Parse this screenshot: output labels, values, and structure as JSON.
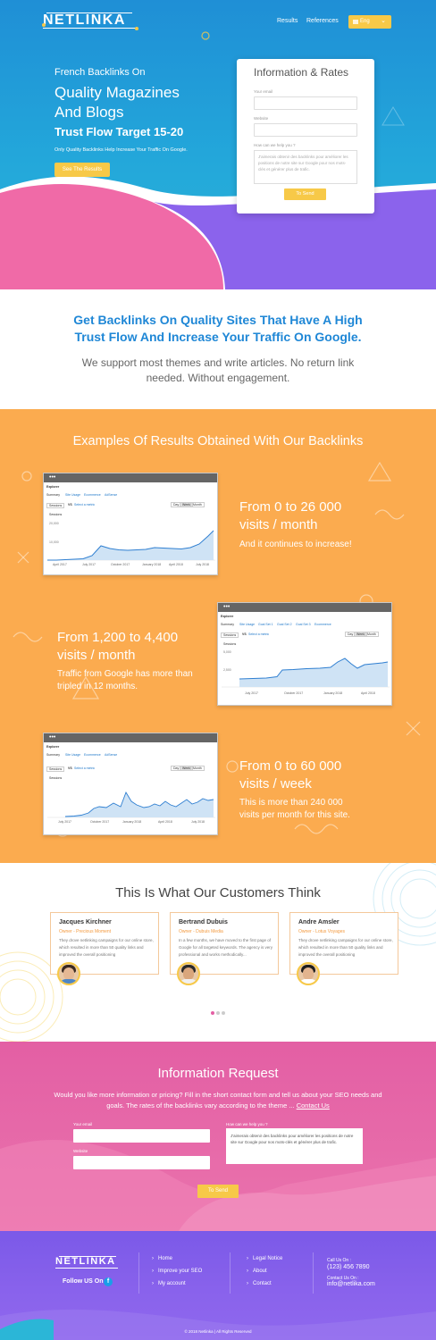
{
  "header": {
    "logo": "NETLINKA",
    "nav": [
      "Results",
      "References"
    ],
    "lang": "Eng"
  },
  "hero": {
    "small": "French Backlinks On",
    "big1": "Quality Magazines",
    "big2": "And Blogs",
    "trust": "Trust Flow Target 15-20",
    "sub": "Only Quality Backlinks Help Increase Your Traffic On Google.",
    "cta": "See The Results"
  },
  "rates_form": {
    "title": "Information & Rates",
    "email_label": "Your email",
    "website_label": "Website",
    "help_label": "How can we help you ?",
    "help_text": "J'aimerais obtenir des backlinks pour améliorer les positions de notre site sur Google pour nos mots-clés et générer plus de trafic.",
    "send": "To Send"
  },
  "intro": {
    "headline1": "Get Backlinks On Quality Sites That Have A High",
    "headline2": "Trust Flow And Increase Your Traffic On Google.",
    "sub1": "We support most themes and write articles. No return link",
    "sub2": "needed. Without engagement."
  },
  "results": {
    "title": "Examples Of Results Obtained With Our Backlinks",
    "items": [
      {
        "head1": "From 0 to 26 000",
        "head2": "visits / month",
        "sub1": "And it continues to increase!",
        "sub2": "",
        "tabs": [
          "Summary",
          "Site Usage",
          "Ecommerce",
          "AdSense"
        ],
        "xlabels": [
          "April 2017",
          "July 2017",
          "October 2017",
          "January 2018",
          "April 2018",
          "July 2018"
        ],
        "ylabels": [
          "20,000",
          "10,000"
        ]
      },
      {
        "head1": "From 1,200 to 4,400",
        "head2": "visits / month",
        "sub1": "Traffic from Google has more than",
        "sub2": "tripled in 12 months.",
        "tabs": [
          "Summary",
          "Site Usage",
          "Goal Set 1",
          "Goal Set 2",
          "Goal Set 3",
          "Ecommerce"
        ],
        "xlabels": [
          "July 2017",
          "October 2017",
          "January 2018",
          "April 2018"
        ],
        "ylabels": [
          "5,000",
          "2,500"
        ]
      },
      {
        "head1": "From 0 to 60 000",
        "head2": "visits / week",
        "sub1": "This is more than 240 000",
        "sub2": "visits per month for this site.",
        "tabs": [
          "Summary",
          "Site Usage",
          "Ecommerce",
          "AdSense"
        ],
        "xlabels": [
          "July 2017",
          "October 2017",
          "January 2018",
          "April 2018",
          "July 2018"
        ],
        "ylabels": []
      }
    ],
    "explorer": "Explorer",
    "sessions": "Sessions",
    "vs": "VS",
    "select_metric": "Select a metric",
    "day": "Day",
    "week": "Week",
    "month": "Month"
  },
  "testimonials": {
    "title": "This Is What Our Customers Think",
    "items": [
      {
        "name": "Jacques Kirchner",
        "role": "Owner - Precious Moment",
        "text": "They drove netlinking campaigns for our online store, which resulted in more than 50 quality links and improved the overall positioning"
      },
      {
        "name": "Bertrand Dubuis",
        "role": "Owner - Dubuis Media",
        "text": "In a few months, we have moved to the first page of Google for all targeted keywords. The agency is very professional and works methodically..."
      },
      {
        "name": "Andre Amsler",
        "role": "Owner - Lotus Voyages",
        "text": "They drove netlinking campaigns for our online store, which resulted in more than 50 quality links and improved the overall positioning"
      }
    ]
  },
  "info_request": {
    "title": "Information Request",
    "text": "Would you like more information or pricing? Fill in the short contact form and tell us about your SEO needs and goals. The rates of the backlinks vary according to the theme ...",
    "contact_link": "Contact Us",
    "email_label": "Your email",
    "website_label": "Website",
    "help_label": "How can we help you ?",
    "help_text": "J'aimerais obtenir des backlinks pour améliorer les positions de notre site sur Google pour nos mots-clés et générer plus de trafic.",
    "send": "To Send"
  },
  "footer": {
    "logo": "NETLINKA",
    "follow": "Follow US On :",
    "links1": [
      "Home",
      "Improve your SEO",
      "My account"
    ],
    "links2": [
      "Legal Notice",
      "About",
      "Contact"
    ],
    "call_label": "Call Us On :",
    "phone": "(123) 456 7890",
    "contact_label": "Contact Us On :",
    "email": "info@netlika.com",
    "copyright": "© 2018 Netlinka | All Rights Reserved"
  },
  "colors": {
    "accent_blue": "#1f87d6",
    "yellow": "#f7c948",
    "orange": "#fbab4f",
    "pink": "#e35fa4",
    "purple": "#7b59e8"
  }
}
